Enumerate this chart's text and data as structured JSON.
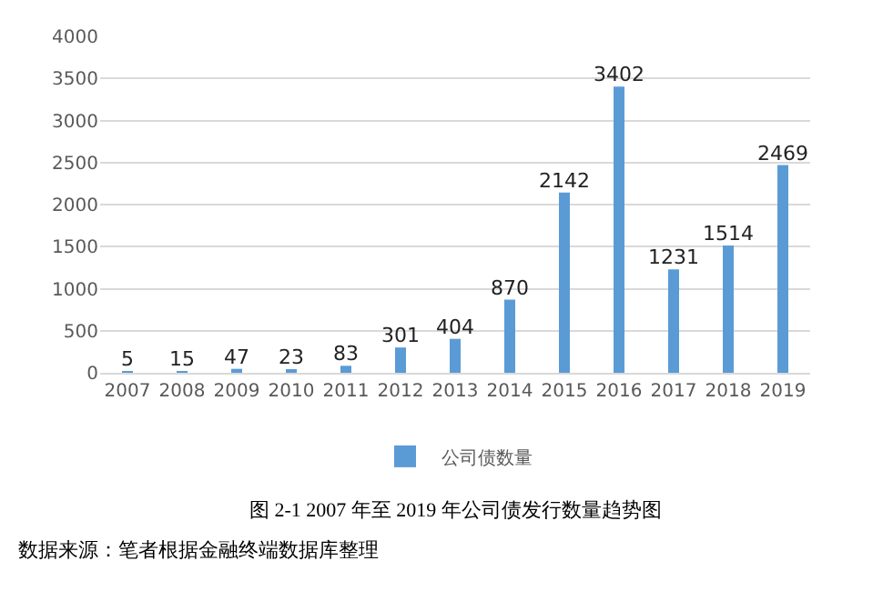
{
  "chart_data": {
    "type": "bar",
    "categories": [
      "2007",
      "2008",
      "2009",
      "2010",
      "2011",
      "2012",
      "2013",
      "2014",
      "2015",
      "2016",
      "2017",
      "2018",
      "2019"
    ],
    "series": [
      {
        "name": "公司债数量",
        "color": "#5b9bd5",
        "values": [
          5,
          15,
          47,
          23,
          83,
          301,
          404,
          870,
          2142,
          3402,
          1231,
          1514,
          2469
        ]
      }
    ],
    "ylim": [
      0,
      4000
    ],
    "yticks": [
      0,
      500,
      1000,
      1500,
      2000,
      2500,
      3000,
      3500,
      4000
    ],
    "grid": "y",
    "legend": "bottom",
    "data_labels": true,
    "annotations": [
      "图 2-1 2007 年至 2019 年公司债发行数量趋势图",
      "数据来源：笔者根据金融终端数据库整理"
    ]
  }
}
